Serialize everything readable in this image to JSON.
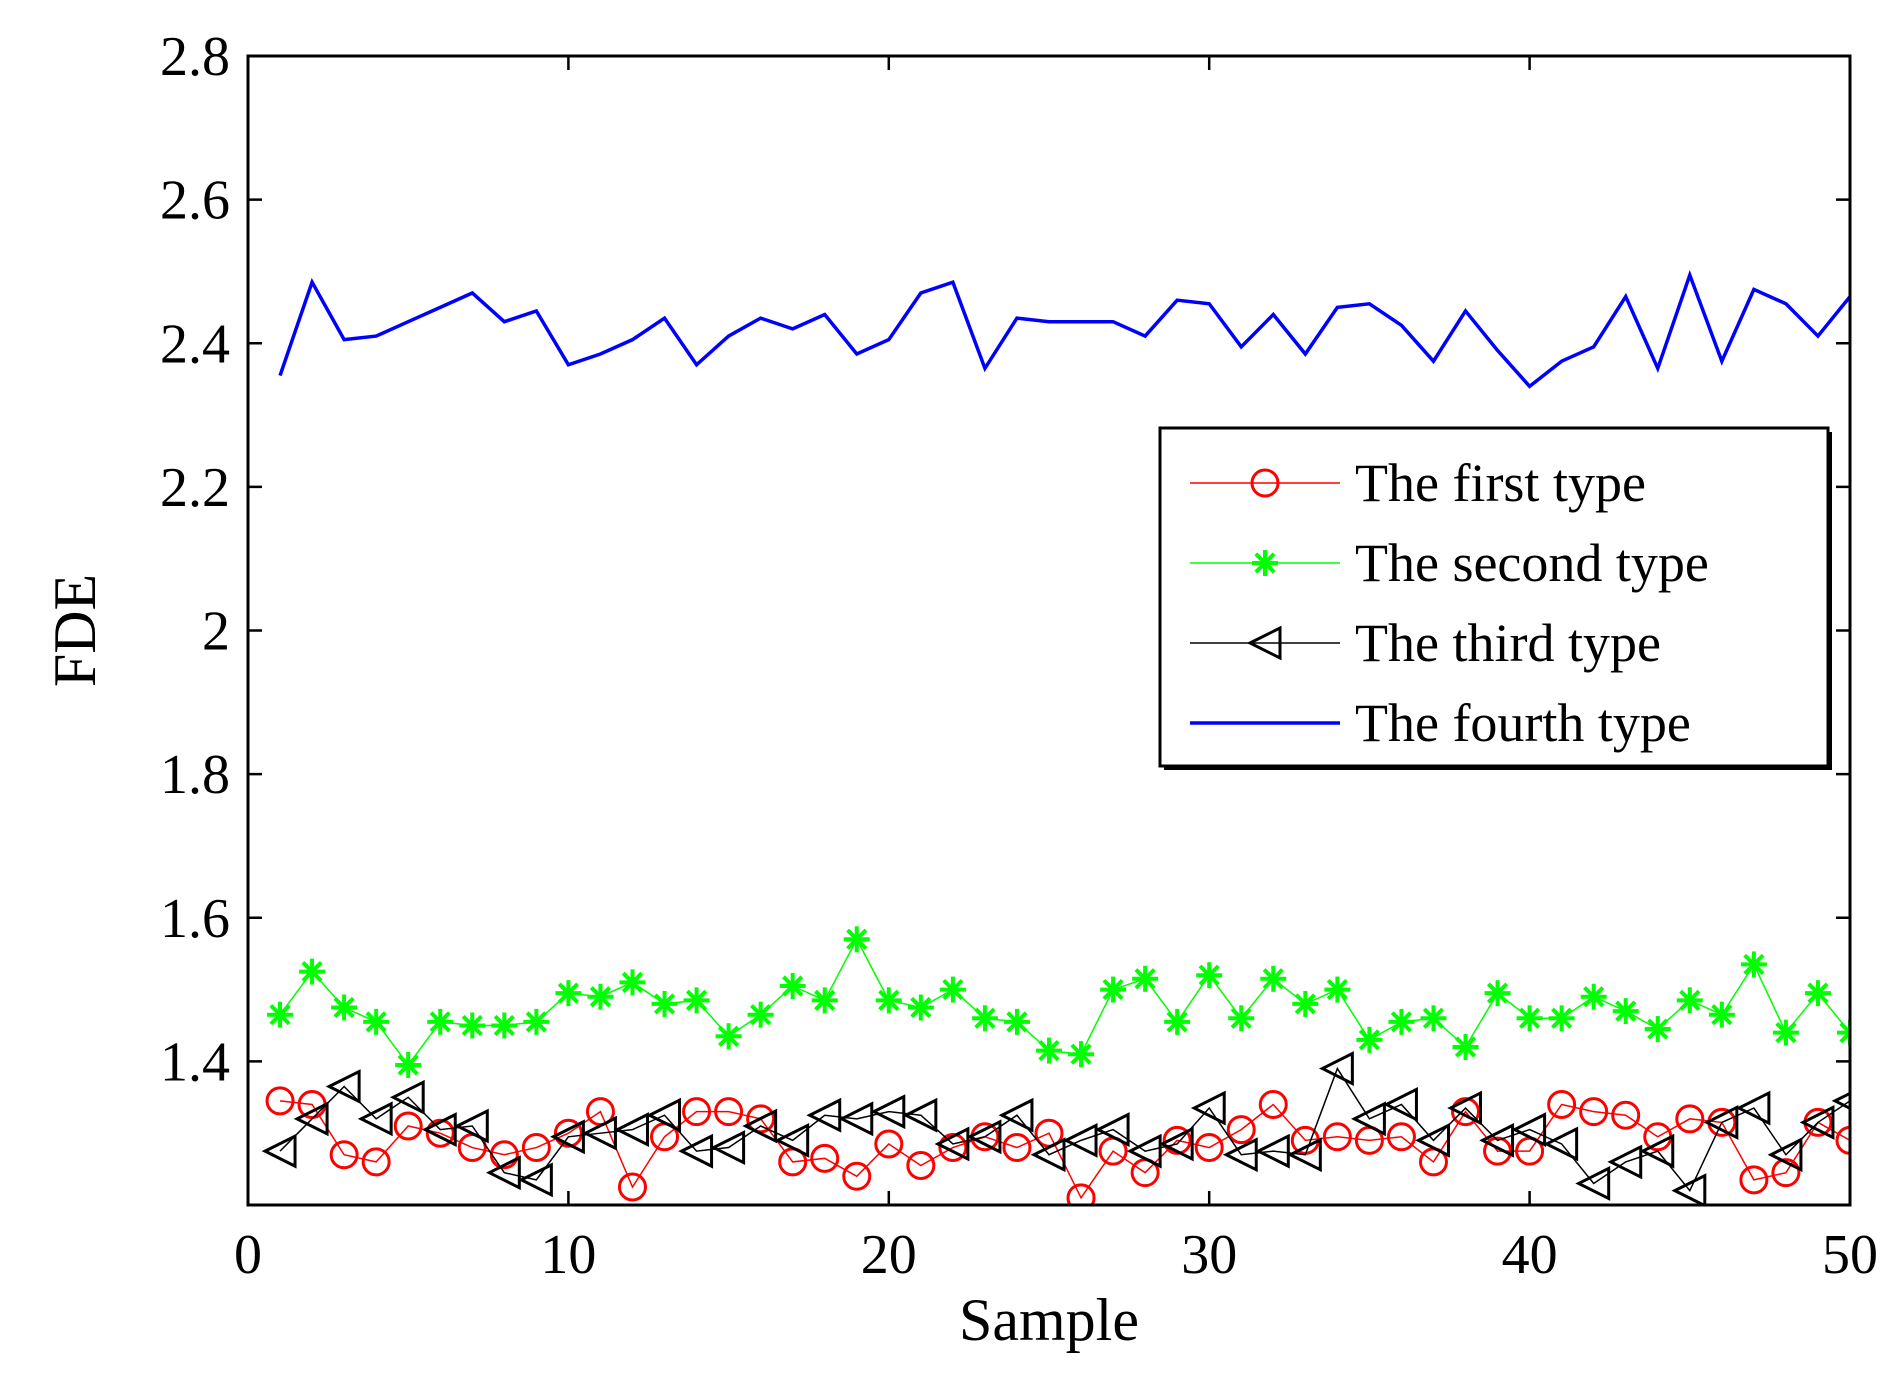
{
  "chart_data": {
    "type": "line",
    "title": "",
    "xlabel": "Sample",
    "ylabel": "FDE",
    "xlim": [
      0,
      50
    ],
    "ylim": [
      1.2,
      2.8
    ],
    "xticks": [
      0,
      10,
      20,
      30,
      40,
      50
    ],
    "xtick_labels": [
      "0",
      "10",
      "20",
      "30",
      "40",
      "50"
    ],
    "yticks": [
      1.4,
      1.6,
      1.8,
      2.0,
      2.2,
      2.4,
      2.6,
      2.8
    ],
    "ytick_labels": [
      "1.4",
      "1.6",
      "1.8",
      "2",
      "2.2",
      "2.4",
      "2.6",
      "2.8"
    ],
    "grid": false,
    "legend_position": "center-right",
    "x": [
      1,
      2,
      3,
      4,
      5,
      6,
      7,
      8,
      9,
      10,
      11,
      12,
      13,
      14,
      15,
      16,
      17,
      18,
      19,
      20,
      21,
      22,
      23,
      24,
      25,
      26,
      27,
      28,
      29,
      30,
      31,
      32,
      33,
      34,
      35,
      36,
      37,
      38,
      39,
      40,
      41,
      42,
      43,
      44,
      45,
      46,
      47,
      48,
      49,
      50
    ],
    "series": [
      {
        "name": "The first type",
        "color": "#ff0000",
        "marker": "circle",
        "line": "solid",
        "values": [
          1.345,
          1.34,
          1.27,
          1.26,
          1.31,
          1.3,
          1.28,
          1.27,
          1.28,
          1.3,
          1.33,
          1.225,
          1.295,
          1.33,
          1.33,
          1.32,
          1.26,
          1.265,
          1.24,
          1.285,
          1.255,
          1.28,
          1.295,
          1.28,
          1.3,
          1.21,
          1.275,
          1.245,
          1.29,
          1.28,
          1.305,
          1.34,
          1.29,
          1.295,
          1.29,
          1.295,
          1.26,
          1.33,
          1.275,
          1.275,
          1.34,
          1.33,
          1.325,
          1.295,
          1.32,
          1.315,
          1.235,
          1.245,
          1.315,
          1.29
        ]
      },
      {
        "name": "The second type",
        "color": "#00ff00",
        "marker": "star",
        "line": "solid",
        "values": [
          1.465,
          1.525,
          1.475,
          1.455,
          1.395,
          1.455,
          1.45,
          1.45,
          1.455,
          1.495,
          1.49,
          1.51,
          1.48,
          1.485,
          1.435,
          1.465,
          1.505,
          1.485,
          1.57,
          1.485,
          1.475,
          1.5,
          1.46,
          1.455,
          1.415,
          1.41,
          1.5,
          1.515,
          1.455,
          1.52,
          1.46,
          1.515,
          1.48,
          1.5,
          1.43,
          1.455,
          1.46,
          1.42,
          1.495,
          1.46,
          1.46,
          1.49,
          1.47,
          1.445,
          1.485,
          1.465,
          1.535,
          1.44,
          1.495,
          1.44
        ]
      },
      {
        "name": "The third type",
        "color": "#000000",
        "marker": "triangle-left",
        "line": "solid",
        "values": [
          1.275,
          1.32,
          1.365,
          1.32,
          1.35,
          1.305,
          1.31,
          1.245,
          1.235,
          1.295,
          1.3,
          1.305,
          1.325,
          1.275,
          1.28,
          1.31,
          1.29,
          1.325,
          1.32,
          1.33,
          1.325,
          1.285,
          1.295,
          1.325,
          1.27,
          1.29,
          1.305,
          1.275,
          1.285,
          1.335,
          1.27,
          1.275,
          1.27,
          1.39,
          1.32,
          1.34,
          1.29,
          1.335,
          1.29,
          1.305,
          1.285,
          1.23,
          1.26,
          1.275,
          1.22,
          1.315,
          1.335,
          1.27,
          1.315,
          1.345
        ]
      },
      {
        "name": "The fourth type",
        "color": "#0000ff",
        "marker": "none",
        "line": "solid",
        "values": [
          2.355,
          2.485,
          2.405,
          2.41,
          2.43,
          2.45,
          2.47,
          2.43,
          2.445,
          2.37,
          2.385,
          2.405,
          2.435,
          2.37,
          2.41,
          2.435,
          2.42,
          2.44,
          2.385,
          2.405,
          2.47,
          2.485,
          2.365,
          2.435,
          2.43,
          2.43,
          2.43,
          2.41,
          2.46,
          2.455,
          2.395,
          2.44,
          2.385,
          2.45,
          2.455,
          2.425,
          2.375,
          2.445,
          2.39,
          2.34,
          2.375,
          2.395,
          2.465,
          2.365,
          2.495,
          2.375,
          2.475,
          2.455,
          2.41,
          2.465
        ]
      }
    ]
  }
}
